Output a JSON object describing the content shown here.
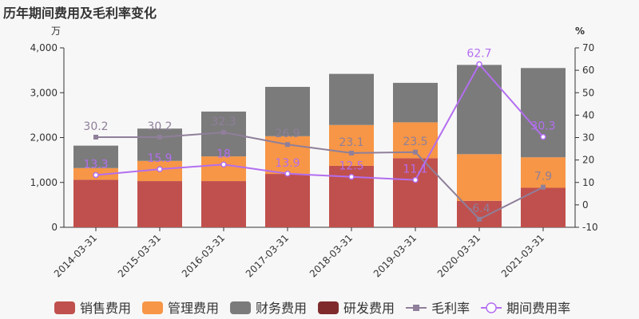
{
  "title": "历年期间费用及毛利率变化",
  "chart_data": {
    "type": "bar+line",
    "categories": [
      "2014-03-31",
      "2015-03-31",
      "2016-03-31",
      "2017-03-31",
      "2018-03-31",
      "2019-03-31",
      "2020-03-31",
      "2021-03-31"
    ],
    "y_left": {
      "unit": "万",
      "ylim": [
        0,
        4000
      ],
      "ticks": [
        "0",
        "1,000",
        "2,000",
        "3,000",
        "4,000"
      ],
      "tick_values": [
        0,
        1000,
        2000,
        3000,
        4000
      ]
    },
    "y_right": {
      "unit": "%",
      "ylim": [
        -10,
        70
      ],
      "ticks": [
        "-10",
        "0",
        "10",
        "20",
        "30",
        "40",
        "50",
        "60",
        "70"
      ],
      "tick_values": [
        -10,
        0,
        10,
        20,
        30,
        40,
        50,
        60,
        70
      ]
    },
    "bar_series": [
      {
        "name": "销售费用",
        "color": "#c0504d",
        "values": [
          1060,
          1030,
          1030,
          1190,
          1370,
          1540,
          590,
          880
        ]
      },
      {
        "name": "管理费用",
        "color": "#f79646",
        "values": [
          260,
          450,
          550,
          840,
          910,
          800,
          1040,
          680
        ]
      },
      {
        "name": "财务费用",
        "color": "#7b7b7b",
        "values": [
          500,
          720,
          1000,
          1100,
          1140,
          880,
          1990,
          1990
        ]
      },
      {
        "name": "研发费用",
        "color": "#7f2b2b",
        "values": [
          0,
          0,
          0,
          0,
          0,
          0,
          0,
          0
        ]
      }
    ],
    "line_series": [
      {
        "name": "毛利率",
        "color": "#8f7f9a",
        "marker": "square",
        "values": [
          30.2,
          30.2,
          32.3,
          26.9,
          23.1,
          23.5,
          -6.4,
          7.9
        ],
        "labels": [
          "30.2",
          "30.2",
          "32.3",
          "26.9",
          "23.1",
          "23.5",
          "-6.4",
          "7.9"
        ]
      },
      {
        "name": "期间费用率",
        "color": "#b36ef0",
        "marker": "circle",
        "values": [
          13.3,
          15.9,
          18,
          13.9,
          12.5,
          11.1,
          62.7,
          30.3
        ],
        "labels": [
          "13.3",
          "15.9",
          "18",
          "13.9",
          "12.5",
          "11.1",
          "62.7",
          "30.3"
        ]
      }
    ]
  }
}
